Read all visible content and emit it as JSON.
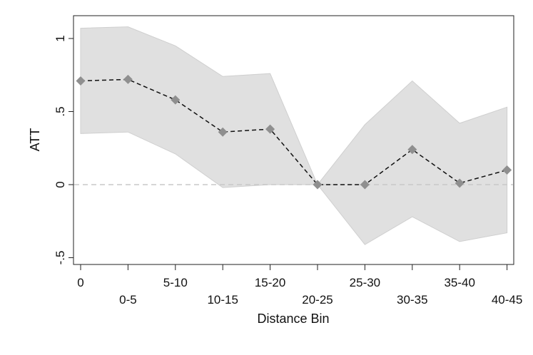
{
  "chart_data": {
    "type": "line",
    "title": "",
    "xlabel": "Distance Bin",
    "ylabel": "ATT",
    "categories": [
      "0",
      "0-5",
      "5-10",
      "10-15",
      "15-20",
      "20-25",
      "25-30",
      "30-35",
      "35-40",
      "40-45"
    ],
    "ylim": [
      -0.55,
      1.15
    ],
    "yticks": [
      {
        "value": -0.5,
        "label": "-.5"
      },
      {
        "value": 0,
        "label": "0"
      },
      {
        "value": 0.5,
        "label": ".5"
      },
      {
        "value": 1,
        "label": "1"
      }
    ],
    "series": [
      {
        "values": [
          0.71,
          0.72,
          0.58,
          0.36,
          0.38,
          0.0,
          0.0,
          0.24,
          0.01,
          0.1
        ]
      }
    ],
    "ci_upper": [
      1.07,
      1.08,
      0.95,
      0.74,
      0.76,
      0.0,
      0.41,
      0.71,
      0.42,
      0.53
    ],
    "ci_lower": [
      0.35,
      0.36,
      0.21,
      -0.02,
      0.0,
      0.0,
      -0.41,
      -0.22,
      -0.39,
      -0.33
    ],
    "reference_line": 0,
    "grid": false,
    "colors": {
      "ci_band": "#e0e0e0",
      "ci_band_edge": "#cfcfcf",
      "line": "#111111",
      "marker": "#8f8f8f",
      "reference": "#c8c8c8",
      "axis": "#222222"
    }
  }
}
